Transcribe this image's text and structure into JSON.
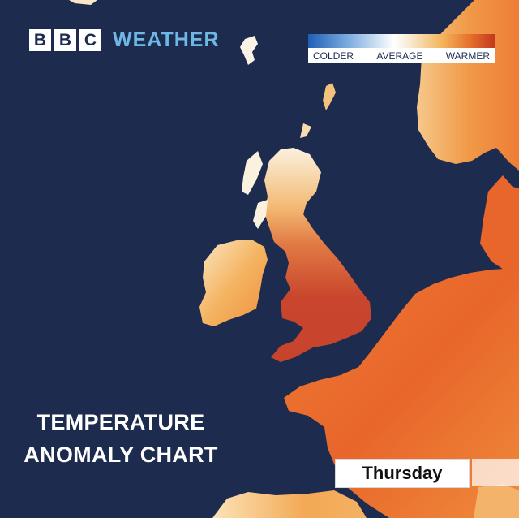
{
  "brand": {
    "letters": [
      "B",
      "B",
      "C"
    ],
    "word": "WEATHER",
    "word_color": "#6fb8e6"
  },
  "legend": {
    "labels": [
      "COLDER",
      "AVERAGE",
      "WARMER"
    ],
    "colors": [
      "#1f5fb4",
      "#ffffff",
      "#c2381f"
    ]
  },
  "title": {
    "line1": "TEMPERATURE",
    "line2": "ANOMALY CHART"
  },
  "day": "Thursday",
  "colors": {
    "sea": "#1d2b4f",
    "warm": "#e8662b",
    "hot": "#c6402a",
    "mild": "#f6c88a"
  }
}
